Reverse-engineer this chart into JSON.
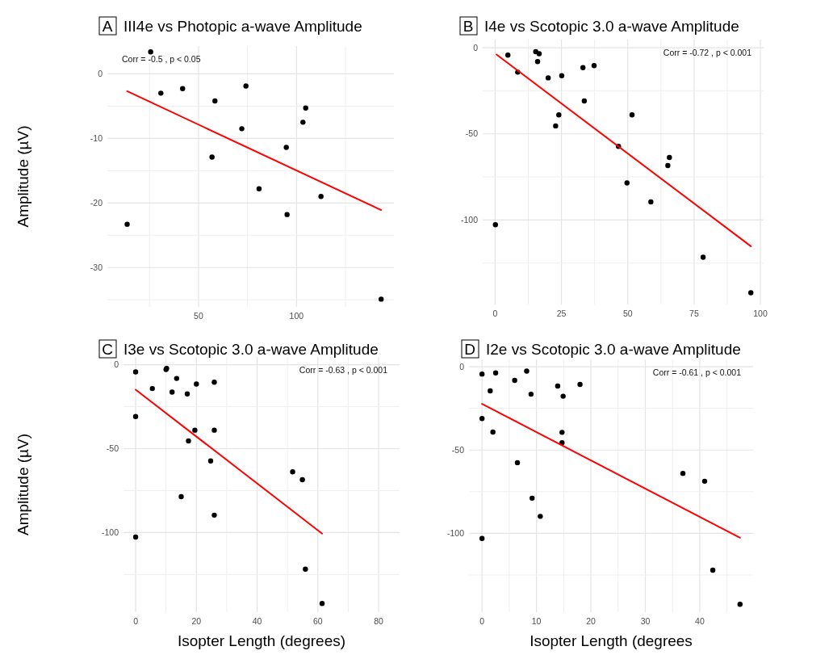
{
  "chart_data": [
    {
      "type": "scatter",
      "title": "III4e vs Photopic a-wave Amplitude",
      "ylabel": "Amplitude (µV)",
      "annotations": [
        "A",
        "Corr = -0.5 ,  p < 0.05"
      ],
      "grid": true,
      "xlim": [
        3.5,
        149.7
      ],
      "ylim": [
        -36.1,
        4.3
      ],
      "xticks": [
        {
          "value": 25,
          "label": null
        },
        50,
        {
          "value": 75,
          "label": null
        },
        100,
        {
          "value": 125,
          "label": null
        }
      ],
      "yticks": [
        {
          "value": -35,
          "label": null
        },
        -30,
        {
          "value": -25,
          "label": null
        },
        -20,
        {
          "value": -15,
          "label": null
        },
        -10,
        {
          "value": -5,
          "label": null
        },
        0
      ],
      "series": [
        {
          "type": "scatter",
          "color": "#000000",
          "x": [
            13.6,
            25.6,
            30.8,
            41.9,
            56.9,
            58.4,
            72.1,
            74.2,
            80.9,
            94.8,
            95.2,
            103.3,
            104.7,
            112.5,
            143.2
          ],
          "values": [
            -23.3,
            3.4,
            -3.0,
            -2.3,
            -12.9,
            -4.2,
            -8.5,
            -1.9,
            -17.8,
            -11.4,
            -21.8,
            -7.5,
            -5.3,
            -19.0,
            -34.9
          ]
        },
        {
          "type": "line",
          "color": "#ff0000",
          "x": [
            13.6,
            143.2
          ],
          "values": [
            -2.7,
            -21.1
          ]
        }
      ]
    },
    {
      "type": "scatter",
      "title": "I4e vs Scotopic 3.0 a-wave Amplitude",
      "annotations": [
        "B",
        "Corr = -0.72 ,  p < 0.001"
      ],
      "grid": true,
      "xlim": [
        -4.7,
        101.2
      ],
      "ylim": [
        -149,
        4.7
      ],
      "xticks": [
        0,
        {
          "value": 12.5,
          "label": null
        },
        25,
        {
          "value": 37.5,
          "label": null
        },
        50,
        {
          "value": 62.5,
          "label": null
        },
        75,
        {
          "value": 87.5,
          "label": null
        },
        100
      ],
      "yticks": [
        {
          "value": -125,
          "label": null
        },
        -100,
        {
          "value": -75,
          "label": null
        },
        -50,
        {
          "value": -25,
          "label": null
        },
        0
      ],
      "series": [
        {
          "type": "scatter",
          "color": "#000000",
          "x": [
            0.1,
            4.8,
            8.5,
            15.3,
            16.6,
            16.0,
            20.0,
            25.1,
            24.0,
            22.8,
            33.1,
            37.3,
            33.6,
            46.5,
            51.6,
            49.7,
            58.7,
            65.1,
            65.7,
            78.4,
            96.4
          ],
          "values": [
            -102.7,
            -4.3,
            -14.2,
            -2.3,
            -3.5,
            -8.1,
            -17.5,
            -16.3,
            -39.0,
            -45.4,
            -11.6,
            -10.4,
            -30.9,
            -57.3,
            -39.0,
            -78.5,
            -89.5,
            -68.4,
            -63.7,
            -121.6,
            -142.2
          ]
        },
        {
          "type": "line",
          "color": "#ff0000",
          "x": [
            0.5,
            96.4
          ],
          "values": [
            -4.0,
            -115.2
          ]
        }
      ]
    },
    {
      "type": "scatter",
      "title": "I3e vs Scotopic 3.0 a-wave Amplitude",
      "xlabel": "Isopter Length (degrees)",
      "ylabel": "Amplitude (µV)",
      "annotations": [
        "C",
        "Corr = -0.63 ,  p < 0.001"
      ],
      "grid": true,
      "xlim": [
        -4.0,
        86.9
      ],
      "ylim": [
        -147.4,
        4.6
      ],
      "xticks": [
        0,
        {
          "value": 10,
          "label": null
        },
        20,
        {
          "value": 30,
          "label": null
        },
        40,
        {
          "value": 50,
          "label": null
        },
        60,
        {
          "value": 70,
          "label": null
        },
        80
      ],
      "yticks": [
        {
          "value": -125,
          "label": null
        },
        -100,
        {
          "value": -75,
          "label": null
        },
        -50,
        {
          "value": -25,
          "label": null
        },
        0
      ],
      "series": [
        {
          "type": "scatter",
          "color": "#000000",
          "x": [
            0,
            0,
            0,
            5.5,
            10.0,
            10.2,
            13.5,
            12.0,
            17.0,
            20.0,
            25.9,
            19.5,
            25.9,
            17.4,
            24.7,
            15.0,
            25.9,
            51.7,
            54.9,
            55.9,
            61.4
          ],
          "values": [
            -4.3,
            -30.9,
            -102.7,
            -14.2,
            -2.9,
            -2.2,
            -8.2,
            -16.3,
            -17.4,
            -11.5,
            -10.4,
            -39.0,
            -39.0,
            -45.4,
            -57.3,
            -78.6,
            -89.6,
            -63.8,
            -68.5,
            -121.8,
            -142.2
          ]
        },
        {
          "type": "line",
          "color": "#ff0000",
          "x": [
            0,
            61.4
          ],
          "values": [
            -14.9,
            -100.6
          ]
        }
      ]
    },
    {
      "type": "scatter",
      "title": "I2e vs Scotopic 3.0 a-wave Amplitude",
      "xlabel": "Isopter Length (degrees",
      "annotations": [
        "D",
        "Corr = -0.61 ,  p < 0.001"
      ],
      "grid": true,
      "xlim": [
        -2.4,
        49.8
      ],
      "ylim": [
        -147.3,
        4.4
      ],
      "xticks": [
        0,
        {
          "value": 5,
          "label": null
        },
        10,
        {
          "value": 15,
          "label": null
        },
        20,
        {
          "value": 25,
          "label": null
        },
        30,
        {
          "value": 35,
          "label": null
        },
        40,
        {
          "value": 45,
          "label": null
        }
      ],
      "yticks": [
        {
          "value": -125,
          "label": null
        },
        -100,
        {
          "value": -75,
          "label": null
        },
        -50,
        {
          "value": -25,
          "label": null
        },
        0
      ],
      "series": [
        {
          "type": "scatter",
          "color": "#000000",
          "x": [
            0,
            0,
            0,
            1.5,
            2.5,
            2.0,
            6.0,
            6.5,
            8.2,
            9.0,
            9.2,
            10.7,
            13.9,
            14.9,
            14.7,
            14.7,
            18.0,
            36.9,
            40.9,
            42.4,
            47.4
          ],
          "values": [
            -4.4,
            -31.1,
            -103.1,
            -14.5,
            -3.7,
            -39.2,
            -8.2,
            -57.6,
            -2.6,
            -16.5,
            -78.9,
            -89.8,
            -11.6,
            -17.7,
            -39.4,
            -45.6,
            -10.6,
            -64.0,
            -68.7,
            -122.1,
            -142.6
          ]
        },
        {
          "type": "line",
          "color": "#ff0000",
          "x": [
            0,
            47.4
          ],
          "values": [
            -22.3,
            -102.6
          ]
        }
      ]
    }
  ]
}
